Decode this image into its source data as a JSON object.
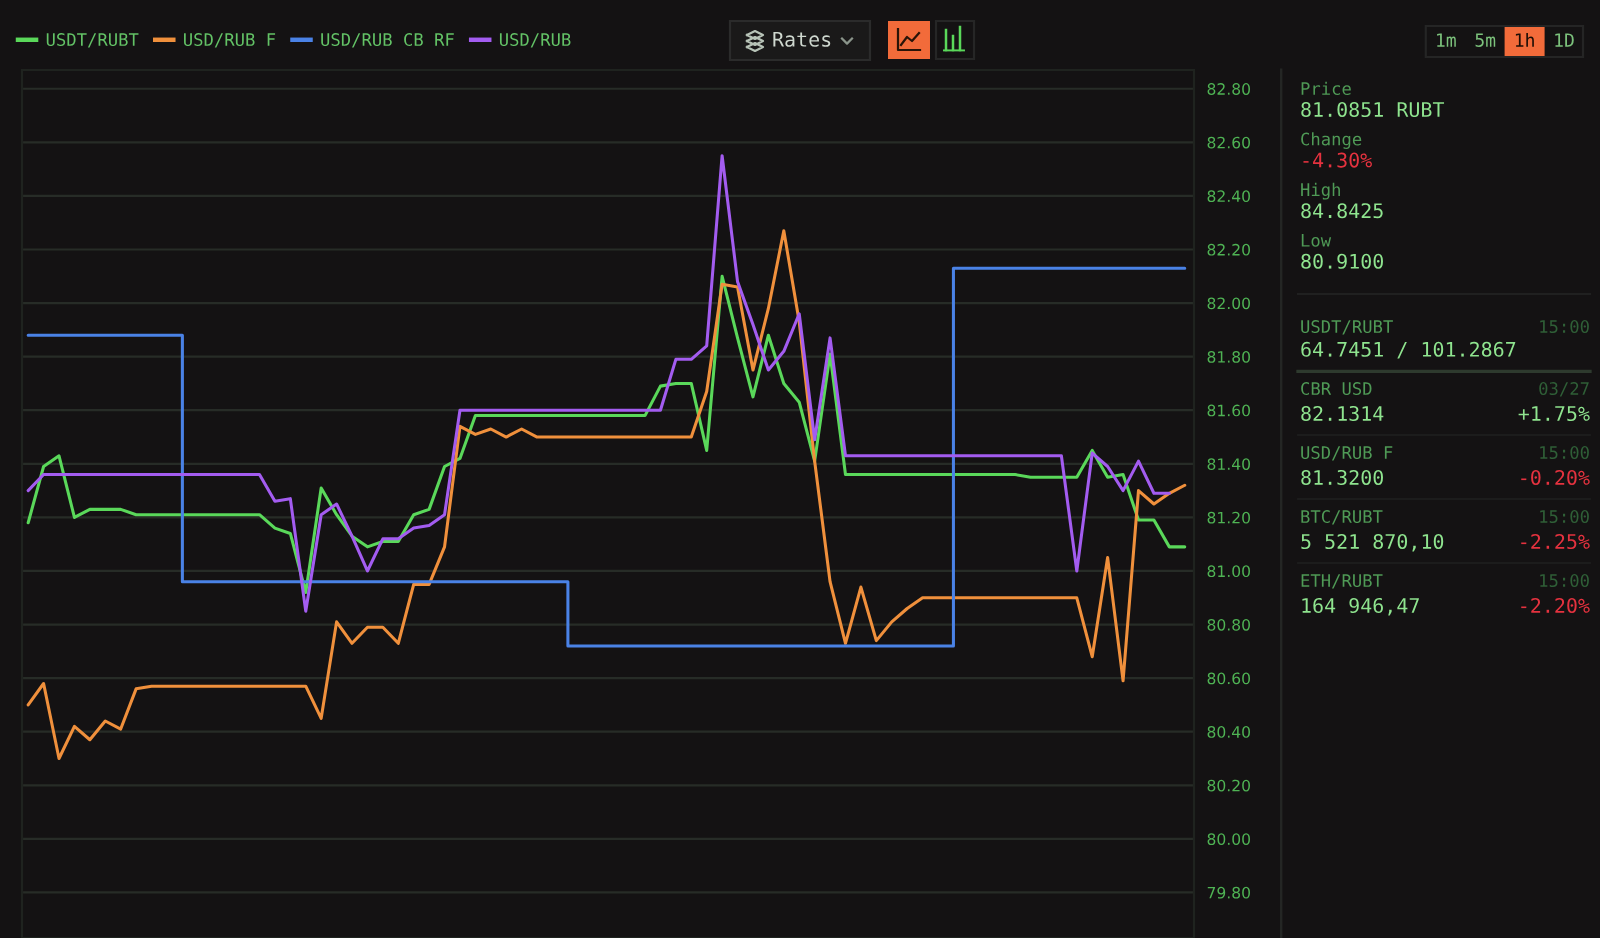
{
  "chart_data": [
    {
      "type": "line",
      "categories": [
        null,
        null,
        null,
        null,
        null,
        null,
        null,
        null,
        null,
        null,
        null,
        null,
        null,
        null,
        null,
        null,
        null,
        null,
        null,
        null,
        null,
        null,
        null,
        null,
        null,
        null,
        null,
        null,
        null,
        null,
        null,
        null,
        null,
        null,
        null,
        null,
        null,
        null,
        null,
        null,
        null,
        null,
        null,
        null,
        null,
        null,
        null,
        null,
        null,
        null,
        null,
        null,
        null,
        null,
        null,
        null,
        null,
        null,
        null,
        null,
        null,
        null,
        null,
        null,
        null,
        null,
        null,
        null,
        null,
        null,
        null,
        null,
        null,
        null,
        null,
        null
      ],
      "series": [
        {
          "name": "USDT/RUBT",
          "color": "#5ad85a",
          "values": [
            81.18,
            81.39,
            81.43,
            81.2,
            81.23,
            81.23,
            81.23,
            81.21,
            81.21,
            81.21,
            81.21,
            81.21,
            81.21,
            81.21,
            81.21,
            81.21,
            81.16,
            81.14,
            80.92,
            81.31,
            81.21,
            81.13,
            81.09,
            81.11,
            81.11,
            81.21,
            81.23,
            81.39,
            81.42,
            81.58,
            81.58,
            81.58,
            81.58,
            81.58,
            81.58,
            81.58,
            81.58,
            81.58,
            81.58,
            81.58,
            81.58,
            81.69,
            81.7,
            81.7,
            81.45,
            82.1,
            81.87,
            81.65,
            81.88,
            81.7,
            81.63,
            81.41,
            81.81,
            81.36,
            81.36,
            81.36,
            81.36,
            81.36,
            81.36,
            81.36,
            81.36,
            81.36,
            81.36,
            81.36,
            81.36,
            81.35,
            81.35,
            81.35,
            81.35,
            81.45,
            81.35,
            81.36,
            81.19,
            81.19,
            81.09,
            81.09
          ]
        },
        {
          "name": "USD/RUB F",
          "color": "#f0903c",
          "values": [
            80.5,
            80.58,
            80.3,
            80.42,
            80.37,
            80.44,
            80.41,
            80.56,
            80.57,
            80.57,
            80.57,
            80.57,
            80.57,
            80.57,
            80.57,
            80.57,
            80.57,
            80.57,
            80.57,
            80.45,
            80.81,
            80.73,
            80.79,
            80.79,
            80.73,
            80.95,
            80.95,
            81.09,
            81.54,
            81.51,
            81.53,
            81.5,
            81.53,
            81.5,
            81.5,
            81.5,
            81.5,
            81.5,
            81.5,
            81.5,
            81.5,
            81.5,
            81.5,
            81.5,
            81.67,
            82.07,
            82.06,
            81.75,
            81.98,
            82.27,
            81.93,
            81.41,
            80.96,
            80.73,
            80.94,
            80.74,
            80.81,
            80.86,
            80.9,
            80.9,
            80.9,
            80.9,
            80.9,
            80.9,
            80.9,
            80.9,
            80.9,
            80.9,
            80.9,
            80.68,
            81.05,
            80.59,
            81.3,
            81.25,
            81.29,
            81.32
          ]
        },
        {
          "name": "USD/RUB CB RF",
          "color": "#4a82e6",
          "type": "step",
          "values": [
            81.88,
            81.88,
            81.88,
            81.88,
            81.88,
            81.88,
            81.88,
            81.88,
            81.88,
            81.88,
            80.96,
            80.96,
            80.96,
            80.96,
            80.96,
            80.96,
            80.96,
            80.96,
            80.96,
            80.96,
            80.96,
            80.96,
            80.96,
            80.96,
            80.96,
            80.96,
            80.96,
            80.96,
            80.96,
            80.96,
            80.96,
            80.96,
            80.96,
            80.96,
            80.96,
            80.72,
            80.72,
            80.72,
            80.72,
            80.72,
            80.72,
            80.72,
            80.72,
            80.72,
            80.72,
            80.72,
            80.72,
            80.72,
            80.72,
            80.72,
            80.72,
            80.72,
            80.72,
            80.72,
            80.72,
            80.72,
            80.72,
            80.72,
            80.72,
            80.72,
            82.13,
            82.13,
            82.13,
            82.13,
            82.13,
            82.13,
            82.13,
            82.13,
            82.13,
            82.13,
            82.13,
            82.13,
            82.13,
            82.13,
            82.13,
            82.13
          ]
        },
        {
          "name": "USD/RUB",
          "color": "#a35cf0",
          "values": [
            81.3,
            81.36,
            81.36,
            81.36,
            81.36,
            81.36,
            81.36,
            81.36,
            81.36,
            81.36,
            81.36,
            81.36,
            81.36,
            81.36,
            81.36,
            81.36,
            81.26,
            81.27,
            80.85,
            81.21,
            81.25,
            81.13,
            81.0,
            81.12,
            81.12,
            81.16,
            81.17,
            81.21,
            81.6,
            81.6,
            81.6,
            81.6,
            81.6,
            81.6,
            81.6,
            81.6,
            81.6,
            81.6,
            81.6,
            81.6,
            81.6,
            81.6,
            81.79,
            81.79,
            81.84,
            82.55,
            82.08,
            81.92,
            81.75,
            81.82,
            81.96,
            81.49,
            81.87,
            81.43,
            81.43,
            81.43,
            81.43,
            81.43,
            81.43,
            81.43,
            81.43,
            81.43,
            81.43,
            81.43,
            81.43,
            81.43,
            81.43,
            81.43,
            81.0,
            81.44,
            81.39,
            81.3,
            81.41,
            81.29,
            81.29,
            null
          ]
        }
      ],
      "ylim": [
        79.63,
        82.87
      ],
      "yticks": [
        {
          "value": 79.8,
          "label": "79.80"
        },
        {
          "value": 80.0,
          "label": "80.00"
        },
        {
          "value": 80.2,
          "label": "80.20"
        },
        {
          "value": 80.4,
          "label": "80.40"
        },
        {
          "value": 80.6,
          "label": "80.60"
        },
        {
          "value": 80.8,
          "label": "80.80"
        },
        {
          "value": 81.0,
          "label": "81.00"
        },
        {
          "value": 81.2,
          "label": "81.20"
        },
        {
          "value": 81.4,
          "label": "81.40"
        },
        {
          "value": 81.6,
          "label": "81.60"
        },
        {
          "value": 81.8,
          "label": "81.80"
        },
        {
          "value": 82.0,
          "label": "82.00"
        },
        {
          "value": 82.2,
          "label": "82.20"
        },
        {
          "value": 82.4,
          "label": "82.40"
        },
        {
          "value": 82.6,
          "label": "82.60"
        },
        {
          "value": 82.8,
          "label": "82.80"
        }
      ],
      "tick_labels": "y",
      "grid": "y",
      "legend": "top left",
      "annotations": [
        "Rates",
        "1m",
        "5m",
        "1h",
        "1D"
      ]
    },
    {
      "type": "other",
      "annotations": [
        "Price",
        "81.0851 RUBT",
        "Change",
        "-4.30%",
        "High",
        "84.8425",
        "Low",
        "80.9100",
        "USDT/RUBT",
        "15:00",
        "64.7451 / 101.2867",
        "CBR USD",
        "03/27",
        "82.1314",
        "+1.75%",
        "USD/RUB F",
        "15:00",
        "81.3200",
        "-0.20%",
        "BTC/RUBT",
        "15:00",
        "5 521 870,10",
        "-2.25%",
        "ETH/RUBT",
        "15:00",
        "164 946,47",
        "-2.20%"
      ]
    }
  ]
}
